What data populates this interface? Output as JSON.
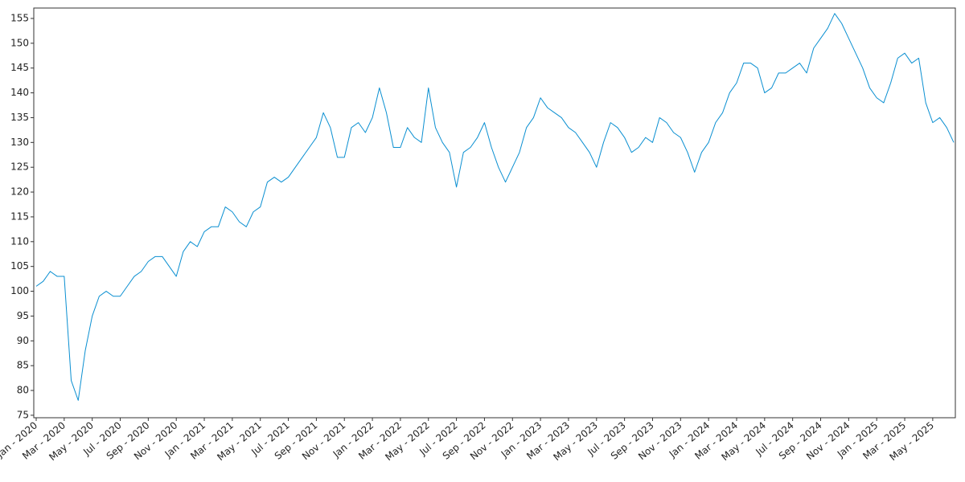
{
  "chart_data": {
    "type": "line",
    "categories": [
      "Jan - 2020",
      null,
      null,
      null,
      "Mar - 2020",
      null,
      null,
      null,
      "May - 2020",
      null,
      null,
      null,
      "Jul - 2020",
      null,
      null,
      null,
      "Sep - 2020",
      null,
      null,
      null,
      "Nov - 2020",
      null,
      null,
      null,
      "Jan - 2021",
      null,
      null,
      null,
      "Mar - 2021",
      null,
      null,
      null,
      "May - 2021",
      null,
      null,
      null,
      "Jul - 2021",
      null,
      null,
      null,
      "Sep - 2021",
      null,
      null,
      null,
      "Nov - 2021",
      null,
      null,
      null,
      "Jan - 2022",
      null,
      null,
      null,
      "Mar - 2022",
      null,
      null,
      null,
      "May - 2022",
      null,
      null,
      null,
      "Jul - 2022",
      null,
      null,
      null,
      "Sep - 2022",
      null,
      null,
      null,
      "Nov - 2022",
      null,
      null,
      null,
      "Jan - 2023",
      null,
      null,
      null,
      "Mar - 2023",
      null,
      null,
      null,
      "May - 2023",
      null,
      null,
      null,
      "Jul - 2023",
      null,
      null,
      null,
      "Sep - 2023",
      null,
      null,
      null,
      "Nov - 2023",
      null,
      null,
      null,
      "Jan - 2024",
      null,
      null,
      null,
      "Mar - 2024",
      null,
      null,
      null,
      "May - 2024",
      null,
      null,
      null,
      "Jul - 2024",
      null,
      null,
      null,
      "Sep - 2024",
      null,
      null,
      null,
      "Nov - 2024",
      null,
      null,
      null,
      "Jan - 2025",
      null,
      null,
      null,
      "Mar - 2025",
      null,
      null,
      null,
      "May - 2025",
      null,
      null,
      null
    ],
    "series": [
      {
        "color": "#0a8fd1",
        "values": [
          101,
          102,
          104,
          103,
          103,
          82,
          78,
          88,
          95,
          99,
          100,
          99,
          99,
          101,
          103,
          104,
          106,
          107,
          107,
          105,
          103,
          108,
          110,
          109,
          112,
          113,
          113,
          117,
          116,
          114,
          113,
          116,
          117,
          122,
          123,
          122,
          123,
          125,
          127,
          129,
          131,
          136,
          133,
          127,
          127,
          133,
          134,
          132,
          135,
          141,
          136,
          129,
          129,
          133,
          131,
          130,
          141,
          133,
          130,
          128,
          121,
          128,
          129,
          131,
          134,
          129,
          125,
          122,
          125,
          128,
          133,
          135,
          139,
          137,
          136,
          135,
          133,
          132,
          130,
          128,
          125,
          130,
          134,
          133,
          131,
          128,
          129,
          131,
          130,
          135,
          134,
          132,
          131,
          128,
          124,
          128,
          130,
          134,
          136,
          140,
          142,
          146,
          146,
          145,
          140,
          141,
          144,
          144,
          145,
          146,
          144,
          149,
          151,
          153,
          156,
          154,
          151,
          148,
          145,
          141,
          139,
          138,
          142,
          147,
          148,
          146,
          147,
          138,
          134,
          135,
          133,
          130
        ]
      }
    ],
    "ylim": [
      74.5,
      157.1
    ],
    "yticks": [
      75,
      80,
      85,
      90,
      95,
      100,
      105,
      110,
      115,
      120,
      125,
      130,
      135,
      140,
      145,
      150,
      155
    ]
  }
}
